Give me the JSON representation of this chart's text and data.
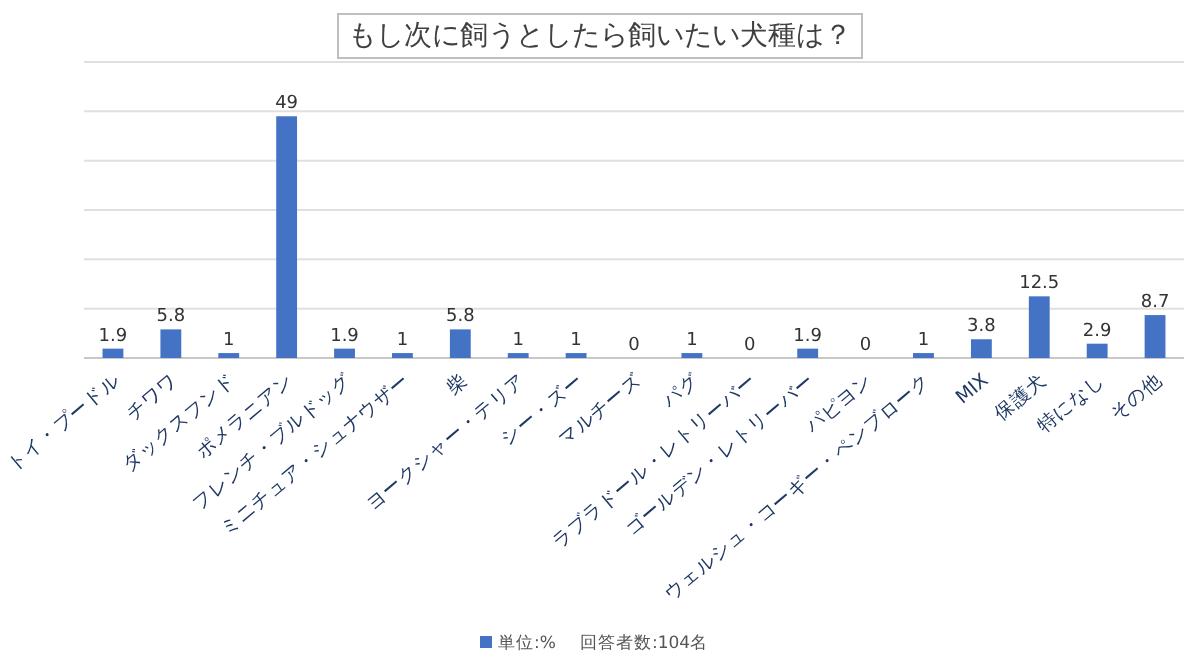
{
  "chart_data": {
    "type": "bar",
    "title": "もし次に飼うとしたら飼いたい犬種は？",
    "categories": [
      "トイ・プードル",
      "チワワ",
      "ダックスフンド",
      "ポメラニアン",
      "フレンチ・ブルドッグ",
      "ミニチュア・シュナウザー",
      "柴",
      "ヨークシャー・テリア",
      "シー・ズー",
      "マルチーズ",
      "パグ",
      "ラブラドール・レトリーバー",
      "ゴールデン・レトリーバー",
      "パピヨン",
      "ウェルシュ・コーギー・ペンブローク",
      "MIX",
      "保護犬",
      "特になし",
      "その他"
    ],
    "series": [
      {
        "name": "単位:%",
        "color": "#4472c4",
        "values": [
          1.9,
          5.8,
          1,
          49,
          1.9,
          1,
          5.8,
          1,
          1,
          0,
          1,
          0,
          1.9,
          0,
          1,
          3.8,
          12.5,
          2.9,
          8.7
        ]
      }
    ],
    "ylim": [
      0,
      60
    ],
    "yticks": [
      {
        "value": 0,
        "label": null
      },
      {
        "value": 10,
        "label": null
      },
      {
        "value": 20,
        "label": null
      },
      {
        "value": 30,
        "label": null
      },
      {
        "value": 40,
        "label": null
      },
      {
        "value": 50,
        "label": null
      },
      {
        "value": 60,
        "label": null
      }
    ],
    "grid": "y",
    "data_labels": true,
    "legend": "bottom",
    "annotations": [
      "回答者数:104名"
    ]
  }
}
